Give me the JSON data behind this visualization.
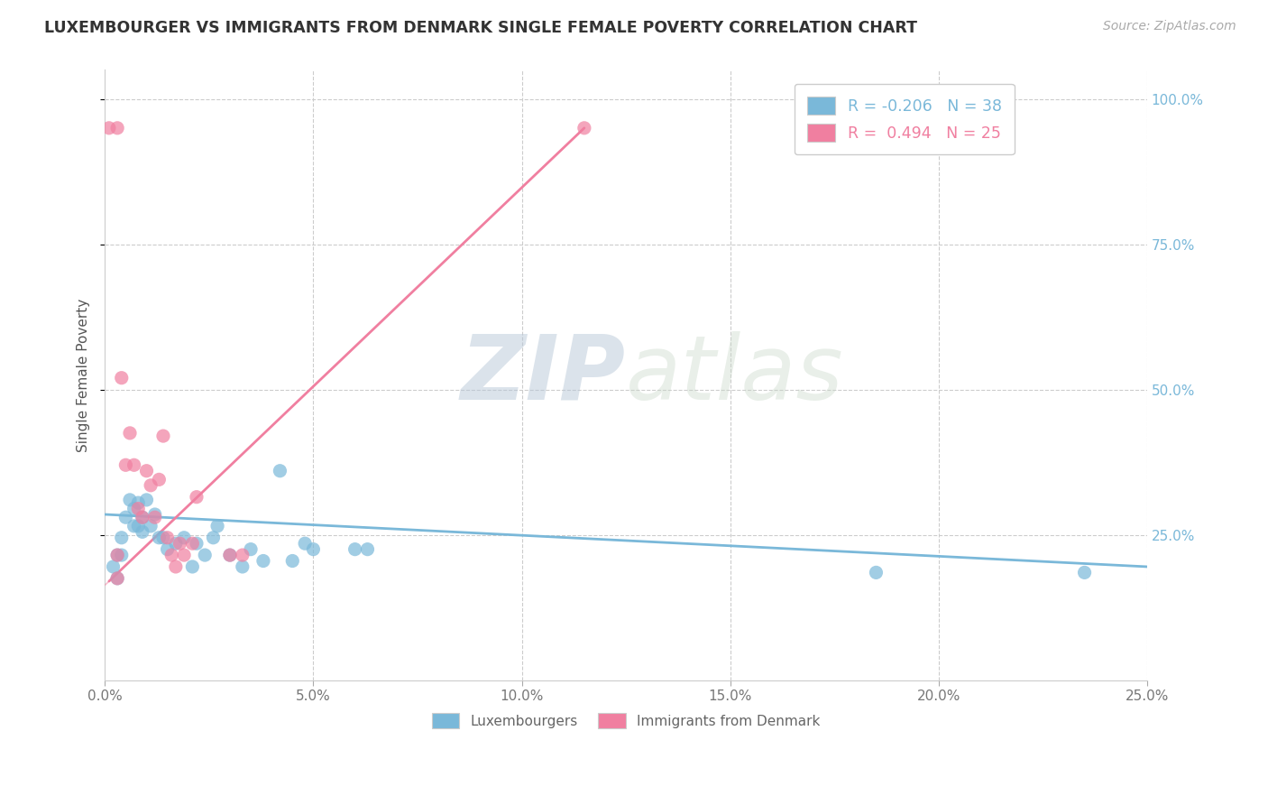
{
  "title": "LUXEMBOURGER VS IMMIGRANTS FROM DENMARK SINGLE FEMALE POVERTY CORRELATION CHART",
  "source": "Source: ZipAtlas.com",
  "ylabel": "Single Female Poverty",
  "xlim": [
    0.0,
    0.25
  ],
  "ylim": [
    0.0,
    1.05
  ],
  "xtick_labels": [
    "0.0%",
    "",
    "",
    "",
    "",
    "",
    "",
    "",
    "",
    "",
    "5.0%",
    "",
    "",
    "",
    "",
    "",
    "",
    "",
    "",
    "",
    "10.0%",
    "",
    "",
    "",
    "",
    "",
    "",
    "",
    "",
    "",
    "15.0%",
    "",
    "",
    "",
    "",
    "",
    "",
    "",
    "",
    "",
    "20.0%",
    "",
    "",
    "",
    "",
    "",
    "",
    "",
    "",
    "",
    "25.0%"
  ],
  "xtick_vals": [
    0.0,
    0.05,
    0.1,
    0.15,
    0.2,
    0.25
  ],
  "xtick_display": [
    "0.0%",
    "5.0%",
    "10.0%",
    "15.0%",
    "20.0%",
    "25.0%"
  ],
  "ytick_labels": [
    "25.0%",
    "50.0%",
    "75.0%",
    "100.0%"
  ],
  "ytick_vals": [
    0.25,
    0.5,
    0.75,
    1.0
  ],
  "r_blue": "-0.206",
  "n_blue": "38",
  "r_pink": "0.494",
  "n_pink": "25",
  "blue_color": "#7ab8d9",
  "pink_color": "#f07fa0",
  "blue_scatter": [
    [
      0.002,
      0.195
    ],
    [
      0.003,
      0.215
    ],
    [
      0.003,
      0.175
    ],
    [
      0.004,
      0.245
    ],
    [
      0.004,
      0.215
    ],
    [
      0.005,
      0.28
    ],
    [
      0.006,
      0.31
    ],
    [
      0.007,
      0.295
    ],
    [
      0.007,
      0.265
    ],
    [
      0.008,
      0.265
    ],
    [
      0.008,
      0.305
    ],
    [
      0.009,
      0.28
    ],
    [
      0.009,
      0.255
    ],
    [
      0.01,
      0.31
    ],
    [
      0.011,
      0.265
    ],
    [
      0.012,
      0.285
    ],
    [
      0.013,
      0.245
    ],
    [
      0.014,
      0.245
    ],
    [
      0.015,
      0.225
    ],
    [
      0.017,
      0.235
    ],
    [
      0.019,
      0.245
    ],
    [
      0.021,
      0.195
    ],
    [
      0.022,
      0.235
    ],
    [
      0.024,
      0.215
    ],
    [
      0.026,
      0.245
    ],
    [
      0.027,
      0.265
    ],
    [
      0.03,
      0.215
    ],
    [
      0.033,
      0.195
    ],
    [
      0.035,
      0.225
    ],
    [
      0.038,
      0.205
    ],
    [
      0.042,
      0.36
    ],
    [
      0.045,
      0.205
    ],
    [
      0.048,
      0.235
    ],
    [
      0.05,
      0.225
    ],
    [
      0.06,
      0.225
    ],
    [
      0.063,
      0.225
    ],
    [
      0.185,
      0.185
    ],
    [
      0.235,
      0.185
    ]
  ],
  "pink_scatter": [
    [
      0.001,
      0.95
    ],
    [
      0.003,
      0.215
    ],
    [
      0.003,
      0.175
    ],
    [
      0.004,
      0.52
    ],
    [
      0.005,
      0.37
    ],
    [
      0.006,
      0.425
    ],
    [
      0.007,
      0.37
    ],
    [
      0.008,
      0.295
    ],
    [
      0.009,
      0.28
    ],
    [
      0.01,
      0.36
    ],
    [
      0.011,
      0.335
    ],
    [
      0.012,
      0.28
    ],
    [
      0.013,
      0.345
    ],
    [
      0.014,
      0.42
    ],
    [
      0.015,
      0.245
    ],
    [
      0.016,
      0.215
    ],
    [
      0.017,
      0.195
    ],
    [
      0.018,
      0.235
    ],
    [
      0.019,
      0.215
    ],
    [
      0.021,
      0.235
    ],
    [
      0.022,
      0.315
    ],
    [
      0.03,
      0.215
    ],
    [
      0.033,
      0.215
    ],
    [
      0.003,
      0.95
    ],
    [
      0.115,
      0.95
    ]
  ],
  "watermark_zip": "ZIP",
  "watermark_atlas": "atlas",
  "blue_line_x": [
    0.0,
    0.25
  ],
  "blue_line_y": [
    0.285,
    0.195
  ],
  "pink_line_x": [
    0.001,
    0.115
  ],
  "pink_line_y": [
    0.17,
    0.95
  ]
}
